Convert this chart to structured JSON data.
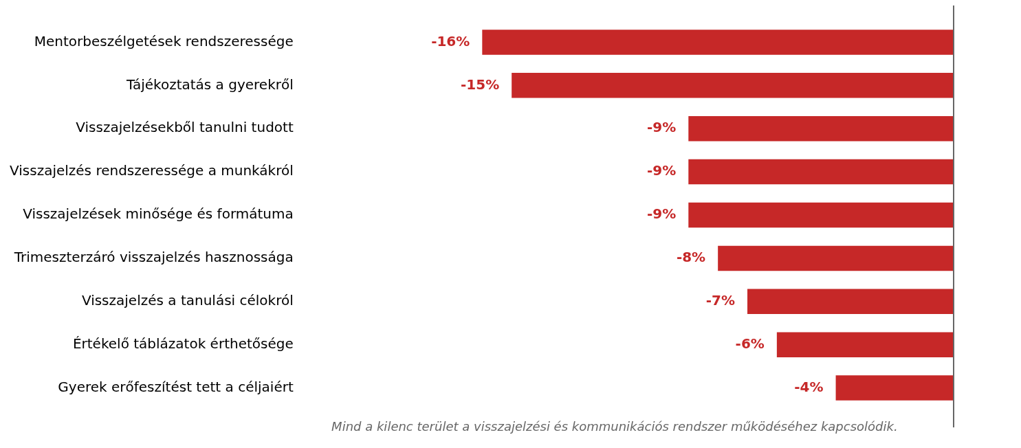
{
  "chart_data": {
    "type": "bar",
    "orientation": "horizontal",
    "categories": [
      "Mentorbeszélgetések rendszeressége",
      "Tájékoztatás a gyerekről",
      "Visszajelzésekből tanulni tudott",
      "Visszajelzés rendszeressége a munkákról",
      "Visszajelzések minősége és formátuma",
      "Trimeszterzáró visszajelzés hasznossága",
      "Visszajelzés a tanulási célokról",
      "Értékelő táblázatok érthetősége",
      "Gyerek erőfeszítést tett a céljaiért"
    ],
    "values": [
      -16,
      -15,
      -9,
      -9,
      -9,
      -8,
      -7,
      -6,
      -4
    ],
    "value_labels": [
      "-16%",
      "-15%",
      "-9%",
      "-9%",
      "-9%",
      "-8%",
      "-7%",
      "-6%",
      "-4%"
    ],
    "color": "#c62828",
    "tick_labels": "y",
    "grid": false,
    "legend": false,
    "ref_lines": [
      {
        "axis": "x",
        "value": 0,
        "color": "#666666"
      }
    ],
    "annotations": [
      "Mind a kilenc terület a visszajelzési és kommunikációs rendszer működéséhez kapcsolódik."
    ]
  }
}
